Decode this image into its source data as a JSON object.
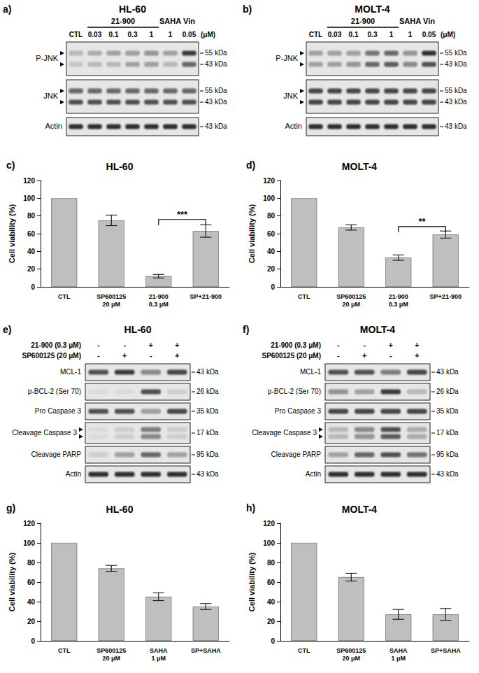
{
  "chart_data": [
    {
      "type": "bar",
      "annotation": "c)",
      "title": "HL-60",
      "y_label": "Cell viability (%)",
      "categories": [
        "CTL",
        "SP600125\n20 μM",
        "21-900\n0.3 μM",
        "SP+21-900"
      ],
      "values": [
        100,
        75,
        12,
        63
      ],
      "errors": [
        null,
        6,
        2,
        7
      ],
      "color": "#bfbfbf",
      "ylim": [
        0,
        120
      ],
      "yticks": [
        0,
        20,
        40,
        60,
        80,
        100,
        120
      ],
      "grid": false,
      "significance": {
        "between": [
          2,
          3
        ],
        "y": 76,
        "label": "***"
      }
    },
    {
      "type": "bar",
      "annotation": "d)",
      "title": "MOLT-4",
      "y_label": "Cell viability (%)",
      "categories": [
        "CTL",
        "SP600125\n20 μM",
        "21-900\n0.3 μM",
        "SP+21-900"
      ],
      "values": [
        100,
        67,
        33,
        59
      ],
      "errors": [
        null,
        3,
        3,
        4
      ],
      "color": "#bfbfbf",
      "ylim": [
        0,
        120
      ],
      "yticks": [
        0,
        20,
        40,
        60,
        80,
        100,
        120
      ],
      "grid": false,
      "significance": {
        "between": [
          2,
          3
        ],
        "y": 68,
        "label": "**"
      }
    },
    {
      "type": "bar",
      "annotation": "g)",
      "title": "HL-60",
      "y_label": "Cell viability (%)",
      "categories": [
        "CTL",
        "SP600125\n20 μM",
        "SAHA\n1 μM",
        "SP+SAHA"
      ],
      "values": [
        100,
        74,
        45,
        35
      ],
      "errors": [
        null,
        3,
        4,
        3
      ],
      "color": "#bfbfbf",
      "ylim": [
        0,
        120
      ],
      "yticks": [
        0,
        20,
        40,
        60,
        80,
        100,
        120
      ],
      "grid": false
    },
    {
      "type": "bar",
      "annotation": "h)",
      "title": "MOLT-4",
      "y_label": "Cell viability (%)",
      "categories": [
        "CTL",
        "SP600125\n20 μM",
        "SAHA\n1 μM",
        "SP+SAHA"
      ],
      "values": [
        100,
        65,
        27,
        27
      ],
      "errors": [
        null,
        4,
        5,
        6
      ],
      "color": "#bfbfbf",
      "ylim": [
        0,
        120
      ],
      "yticks": [
        0,
        20,
        40,
        60,
        80,
        100,
        120
      ],
      "grid": false
    }
  ],
  "blots": [
    {
      "annotation": "a)",
      "title": "HL-60",
      "groups": [
        {
          "label": "21-900",
          "lanes": [
            1,
            4
          ]
        },
        {
          "label": "SAHA",
          "lanes": [
            5,
            5
          ]
        },
        {
          "label": "Vin",
          "lanes": [
            6,
            6
          ]
        }
      ],
      "lanes": [
        "CTL",
        "0.03",
        "0.1",
        "0.3",
        "1",
        "1",
        "0.05"
      ],
      "unit": "(μM)",
      "rows": [
        {
          "label": "P-JNK",
          "kda": [
            "55 kDa",
            "43 kDa"
          ],
          "bands": [
            [
              0.2,
              0.25,
              0.3,
              0.35,
              0.4,
              0.3,
              0.8
            ],
            [
              0.15,
              0.2,
              0.2,
              0.3,
              0.35,
              0.2,
              0.6
            ]
          ]
        },
        {
          "label": "JNK",
          "kda": [
            "55 kDa",
            "43 kDa"
          ],
          "bands": [
            [
              0.6,
              0.6,
              0.6,
              0.6,
              0.6,
              0.6,
              0.6
            ],
            [
              0.7,
              0.7,
              0.7,
              0.7,
              0.7,
              0.7,
              0.7
            ]
          ]
        },
        {
          "label": "Actin",
          "kda": [
            "43 kDa"
          ],
          "bands": [
            [
              0.85,
              0.85,
              0.85,
              0.85,
              0.85,
              0.85,
              0.85
            ]
          ]
        }
      ]
    },
    {
      "annotation": "b)",
      "title": "MOLT-4",
      "groups": [
        {
          "label": "21-900",
          "lanes": [
            1,
            4
          ]
        },
        {
          "label": "SAHA",
          "lanes": [
            5,
            5
          ]
        },
        {
          "label": "Vin",
          "lanes": [
            6,
            6
          ]
        }
      ],
      "lanes": [
        "CTL",
        "0.03",
        "0.1",
        "0.3",
        "1",
        "1",
        "0.05"
      ],
      "unit": "(μM)",
      "rows": [
        {
          "label": "P-JNK",
          "kda": [
            "55 kDa",
            "43 kDa"
          ],
          "bands": [
            [
              0.3,
              0.3,
              0.35,
              0.55,
              0.6,
              0.4,
              0.85
            ],
            [
              0.3,
              0.3,
              0.4,
              0.6,
              0.65,
              0.45,
              0.7
            ]
          ]
        },
        {
          "label": "JNK",
          "kda": [
            "55 kDa",
            "43 kDa"
          ],
          "bands": [
            [
              0.75,
              0.75,
              0.75,
              0.75,
              0.75,
              0.75,
              0.75
            ],
            [
              0.75,
              0.75,
              0.75,
              0.75,
              0.75,
              0.75,
              0.75
            ]
          ]
        },
        {
          "label": "Actin",
          "kda": [
            "43 kDa"
          ],
          "bands": [
            [
              0.85,
              0.85,
              0.85,
              0.85,
              0.85,
              0.85,
              0.85
            ]
          ]
        }
      ]
    },
    {
      "annotation": "e)",
      "title": "HL-60",
      "conditions": [
        {
          "label": "21-900 (0.3 μM)",
          "marks": [
            "-",
            "-",
            "+",
            "+"
          ]
        },
        {
          "label": "SP600125 (20 μM)",
          "marks": [
            "-",
            "+",
            "-",
            "+"
          ]
        }
      ],
      "rows": [
        {
          "label": "MCL-1",
          "kda": [
            "43 kDa"
          ],
          "bands": [
            [
              0.7,
              0.8,
              0.45,
              0.75
            ]
          ]
        },
        {
          "label": "p-BCL-2 (Ser 70)",
          "kda": [
            "26 kDa"
          ],
          "bands": [
            [
              0.05,
              0.05,
              0.7,
              0.1
            ]
          ]
        },
        {
          "label": "Pro Caspase 3",
          "kda": [
            "35 kDa"
          ],
          "bands": [
            [
              0.7,
              0.7,
              0.35,
              0.75
            ]
          ]
        },
        {
          "label": "Cleavage Caspase 3",
          "kda": [
            "17 kDa"
          ],
          "bands": [
            [
              0.05,
              0.1,
              0.5,
              0.1
            ],
            [
              0.05,
              0.1,
              0.45,
              0.1
            ]
          ]
        },
        {
          "label": "Cleavage PARP",
          "kda": [
            "95 kDa"
          ],
          "bands": [
            [
              0.1,
              0.3,
              0.6,
              0.3
            ]
          ]
        },
        {
          "label": "Actin",
          "kda": [
            "43 kDa"
          ],
          "bands": [
            [
              0.85,
              0.85,
              0.85,
              0.85
            ]
          ]
        }
      ]
    },
    {
      "annotation": "f)",
      "title": "MOLT-4",
      "conditions": [
        {
          "label": "21-900 (0.3 μM)",
          "marks": [
            "-",
            "-",
            "+",
            "+"
          ]
        },
        {
          "label": "SP600125 (20 μM)",
          "marks": [
            "-",
            "+",
            "-",
            "+"
          ]
        }
      ],
      "rows": [
        {
          "label": "MCL-1",
          "kda": [
            "43 kDa"
          ],
          "bands": [
            [
              0.7,
              0.7,
              0.5,
              0.75
            ]
          ]
        },
        {
          "label": "p-BCL-2 (Ser 70)",
          "kda": [
            "26 kDa"
          ],
          "bands": [
            [
              0.4,
              0.3,
              0.8,
              0.2
            ]
          ]
        },
        {
          "label": "Pro Caspase 3",
          "kda": [
            "35 kDa"
          ],
          "bands": [
            [
              0.75,
              0.75,
              0.75,
              0.75
            ]
          ]
        },
        {
          "label": "Cleavage Caspase 3",
          "kda": [
            "17 kDa"
          ],
          "bands": [
            [
              0.2,
              0.45,
              0.7,
              0.25
            ],
            [
              0.2,
              0.4,
              0.65,
              0.25
            ]
          ]
        },
        {
          "label": "Cleavage PARP",
          "kda": [
            "95 kDa"
          ],
          "bands": [
            [
              0.3,
              0.6,
              0.7,
              0.55
            ]
          ]
        },
        {
          "label": "Actin",
          "kda": [
            "43 kDa"
          ],
          "bands": [
            [
              0.85,
              0.85,
              0.85,
              0.85
            ]
          ]
        }
      ]
    }
  ]
}
